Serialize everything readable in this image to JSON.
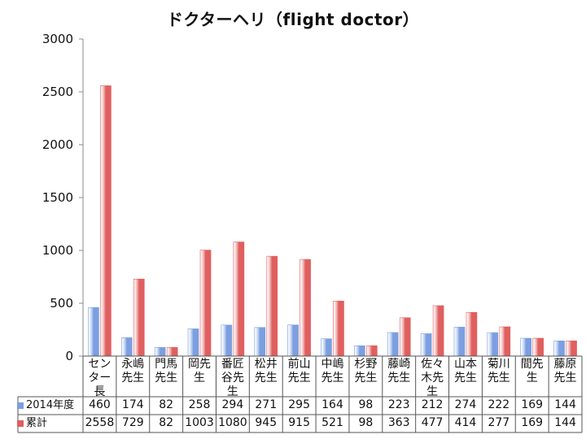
{
  "chart_data": {
    "type": "bar",
    "title": "ドクターヘリ（flight doctor）",
    "categories": [
      [
        "セン",
        "ター",
        "長"
      ],
      [
        "永嶋",
        "先生"
      ],
      [
        "門馬",
        "先生"
      ],
      [
        "岡先",
        "生"
      ],
      [
        "番匠",
        "谷先",
        "生"
      ],
      [
        "松井",
        "先生"
      ],
      [
        "前山",
        "先生"
      ],
      [
        "中嶋",
        "先生"
      ],
      [
        "杉野",
        "先生"
      ],
      [
        "藤崎",
        "先生"
      ],
      [
        "佐々",
        "木先",
        "生"
      ],
      [
        "山本",
        "先生"
      ],
      [
        "菊川",
        "先生"
      ],
      [
        "間先",
        "生"
      ],
      [
        "藤原",
        "先生"
      ]
    ],
    "series": [
      {
        "name": "2014年度",
        "color": "#7b9fe0",
        "values": [
          460,
          174,
          82,
          258,
          294,
          271,
          295,
          164,
          98,
          223,
          212,
          274,
          222,
          169,
          144
        ]
      },
      {
        "name": "累計",
        "color": "#e05f5f",
        "values": [
          2558,
          729,
          82,
          1003,
          1080,
          945,
          915,
          521,
          98,
          363,
          477,
          414,
          277,
          169,
          144
        ]
      }
    ],
    "ylim": [
      0,
      3000
    ],
    "yticks": [
      0,
      500,
      1000,
      1500,
      2000,
      2500,
      3000
    ],
    "grid": false,
    "legend": "data-table"
  }
}
